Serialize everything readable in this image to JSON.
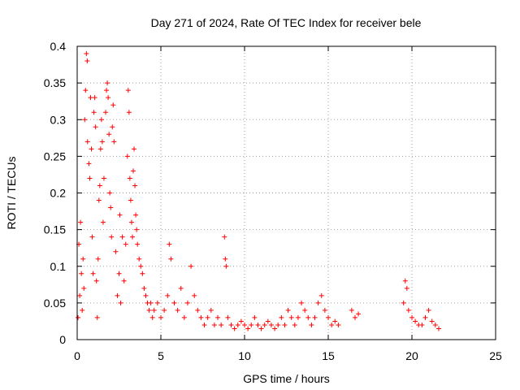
{
  "chart_data": {
    "type": "scatter",
    "title": "Day 271 of 2024, Rate Of TEC Index for receiver bele",
    "xlabel": "GPS time / hours",
    "ylabel": "ROTI / TECUs",
    "xlim": [
      0,
      25
    ],
    "ylim": [
      0,
      0.4
    ],
    "xticks": [
      0,
      5,
      10,
      15,
      20,
      25
    ],
    "xtick_labels": [
      "0",
      "5",
      "10",
      "15",
      "20",
      "25"
    ],
    "yticks": [
      0,
      0.05,
      0.1,
      0.15,
      0.2,
      0.25,
      0.3,
      0.35,
      0.4
    ],
    "ytick_labels": [
      "0",
      "0.05",
      "0.1",
      "0.15",
      "0.2",
      "0.25",
      "0.3",
      "0.35",
      "0.4"
    ],
    "grid": true,
    "marker": "plus",
    "color": "#ff0000",
    "series": [
      {
        "points": [
          [
            0.05,
            0.03
          ],
          [
            0.1,
            0.13
          ],
          [
            0.15,
            0.06
          ],
          [
            0.2,
            0.16
          ],
          [
            0.25,
            0.09
          ],
          [
            0.3,
            0.04
          ],
          [
            0.35,
            0.11
          ],
          [
            0.4,
            0.07
          ],
          [
            0.45,
            0.3
          ],
          [
            0.5,
            0.34
          ],
          [
            0.55,
            0.39
          ],
          [
            0.6,
            0.38
          ],
          [
            0.62,
            0.27
          ],
          [
            0.7,
            0.24
          ],
          [
            0.75,
            0.22
          ],
          [
            0.8,
            0.33
          ],
          [
            0.85,
            0.26
          ],
          [
            0.9,
            0.14
          ],
          [
            0.95,
            0.09
          ],
          [
            1.0,
            0.31
          ],
          [
            1.05,
            0.33
          ],
          [
            1.1,
            0.29
          ],
          [
            1.15,
            0.08
          ],
          [
            1.2,
            0.03
          ],
          [
            1.25,
            0.11
          ],
          [
            1.3,
            0.19
          ],
          [
            1.35,
            0.21
          ],
          [
            1.4,
            0.26
          ],
          [
            1.45,
            0.3
          ],
          [
            1.5,
            0.27
          ],
          [
            1.55,
            0.16
          ],
          [
            1.6,
            0.22
          ],
          [
            1.7,
            0.31
          ],
          [
            1.75,
            0.34
          ],
          [
            1.8,
            0.35
          ],
          [
            1.85,
            0.33
          ],
          [
            1.9,
            0.28
          ],
          [
            1.95,
            0.2
          ],
          [
            2.0,
            0.18
          ],
          [
            2.05,
            0.14
          ],
          [
            2.1,
            0.29
          ],
          [
            2.15,
            0.32
          ],
          [
            2.2,
            0.27
          ],
          [
            2.3,
            0.12
          ],
          [
            2.4,
            0.06
          ],
          [
            2.5,
            0.09
          ],
          [
            2.55,
            0.17
          ],
          [
            2.6,
            0.05
          ],
          [
            2.7,
            0.14
          ],
          [
            2.8,
            0.08
          ],
          [
            2.9,
            0.13
          ],
          [
            3.0,
            0.25
          ],
          [
            3.05,
            0.34
          ],
          [
            3.1,
            0.31
          ],
          [
            3.15,
            0.22
          ],
          [
            3.2,
            0.19
          ],
          [
            3.25,
            0.16
          ],
          [
            3.3,
            0.14
          ],
          [
            3.35,
            0.23
          ],
          [
            3.4,
            0.26
          ],
          [
            3.45,
            0.21
          ],
          [
            3.5,
            0.17
          ],
          [
            3.55,
            0.15
          ],
          [
            3.6,
            0.13
          ],
          [
            3.7,
            0.11
          ],
          [
            3.8,
            0.1
          ],
          [
            3.9,
            0.09
          ],
          [
            4.0,
            0.07
          ],
          [
            4.1,
            0.06
          ],
          [
            4.2,
            0.05
          ],
          [
            4.3,
            0.04
          ],
          [
            4.4,
            0.05
          ],
          [
            4.5,
            0.03
          ],
          [
            4.6,
            0.04
          ],
          [
            4.8,
            0.05
          ],
          [
            5.0,
            0.03
          ],
          [
            5.2,
            0.04
          ],
          [
            5.4,
            0.06
          ],
          [
            5.5,
            0.13
          ],
          [
            5.6,
            0.11
          ],
          [
            5.8,
            0.05
          ],
          [
            6.0,
            0.04
          ],
          [
            6.2,
            0.07
          ],
          [
            6.4,
            0.03
          ],
          [
            6.6,
            0.05
          ],
          [
            6.8,
            0.1
          ],
          [
            7.0,
            0.06
          ],
          [
            7.2,
            0.04
          ],
          [
            7.4,
            0.03
          ],
          [
            7.6,
            0.02
          ],
          [
            7.8,
            0.03
          ],
          [
            8.0,
            0.04
          ],
          [
            8.2,
            0.02
          ],
          [
            8.4,
            0.03
          ],
          [
            8.6,
            0.02
          ],
          [
            8.8,
            0.14
          ],
          [
            8.85,
            0.11
          ],
          [
            8.9,
            0.1
          ],
          [
            9.0,
            0.03
          ],
          [
            9.2,
            0.02
          ],
          [
            9.4,
            0.015
          ],
          [
            9.6,
            0.02
          ],
          [
            9.8,
            0.025
          ],
          [
            10.0,
            0.02
          ],
          [
            10.2,
            0.015
          ],
          [
            10.4,
            0.02
          ],
          [
            10.6,
            0.03
          ],
          [
            10.8,
            0.02
          ],
          [
            11.0,
            0.015
          ],
          [
            11.2,
            0.02
          ],
          [
            11.4,
            0.025
          ],
          [
            11.6,
            0.02
          ],
          [
            11.8,
            0.015
          ],
          [
            12.0,
            0.02
          ],
          [
            12.2,
            0.03
          ],
          [
            12.4,
            0.02
          ],
          [
            12.6,
            0.04
          ],
          [
            12.8,
            0.03
          ],
          [
            13.0,
            0.02
          ],
          [
            13.2,
            0.03
          ],
          [
            13.4,
            0.05
          ],
          [
            13.6,
            0.04
          ],
          [
            13.8,
            0.03
          ],
          [
            14.0,
            0.02
          ],
          [
            14.2,
            0.03
          ],
          [
            14.4,
            0.05
          ],
          [
            14.6,
            0.06
          ],
          [
            14.8,
            0.04
          ],
          [
            15.0,
            0.03
          ],
          [
            15.2,
            0.02
          ],
          [
            15.4,
            0.025
          ],
          [
            15.6,
            0.02
          ],
          [
            16.4,
            0.04
          ],
          [
            16.6,
            0.03
          ],
          [
            16.8,
            0.035
          ],
          [
            19.5,
            0.05
          ],
          [
            19.6,
            0.08
          ],
          [
            19.7,
            0.07
          ],
          [
            19.8,
            0.04
          ],
          [
            20.0,
            0.03
          ],
          [
            20.2,
            0.025
          ],
          [
            20.4,
            0.02
          ],
          [
            20.6,
            0.02
          ],
          [
            20.8,
            0.03
          ],
          [
            21.0,
            0.04
          ],
          [
            21.2,
            0.025
          ],
          [
            21.4,
            0.02
          ],
          [
            21.6,
            0.015
          ]
        ]
      }
    ]
  }
}
